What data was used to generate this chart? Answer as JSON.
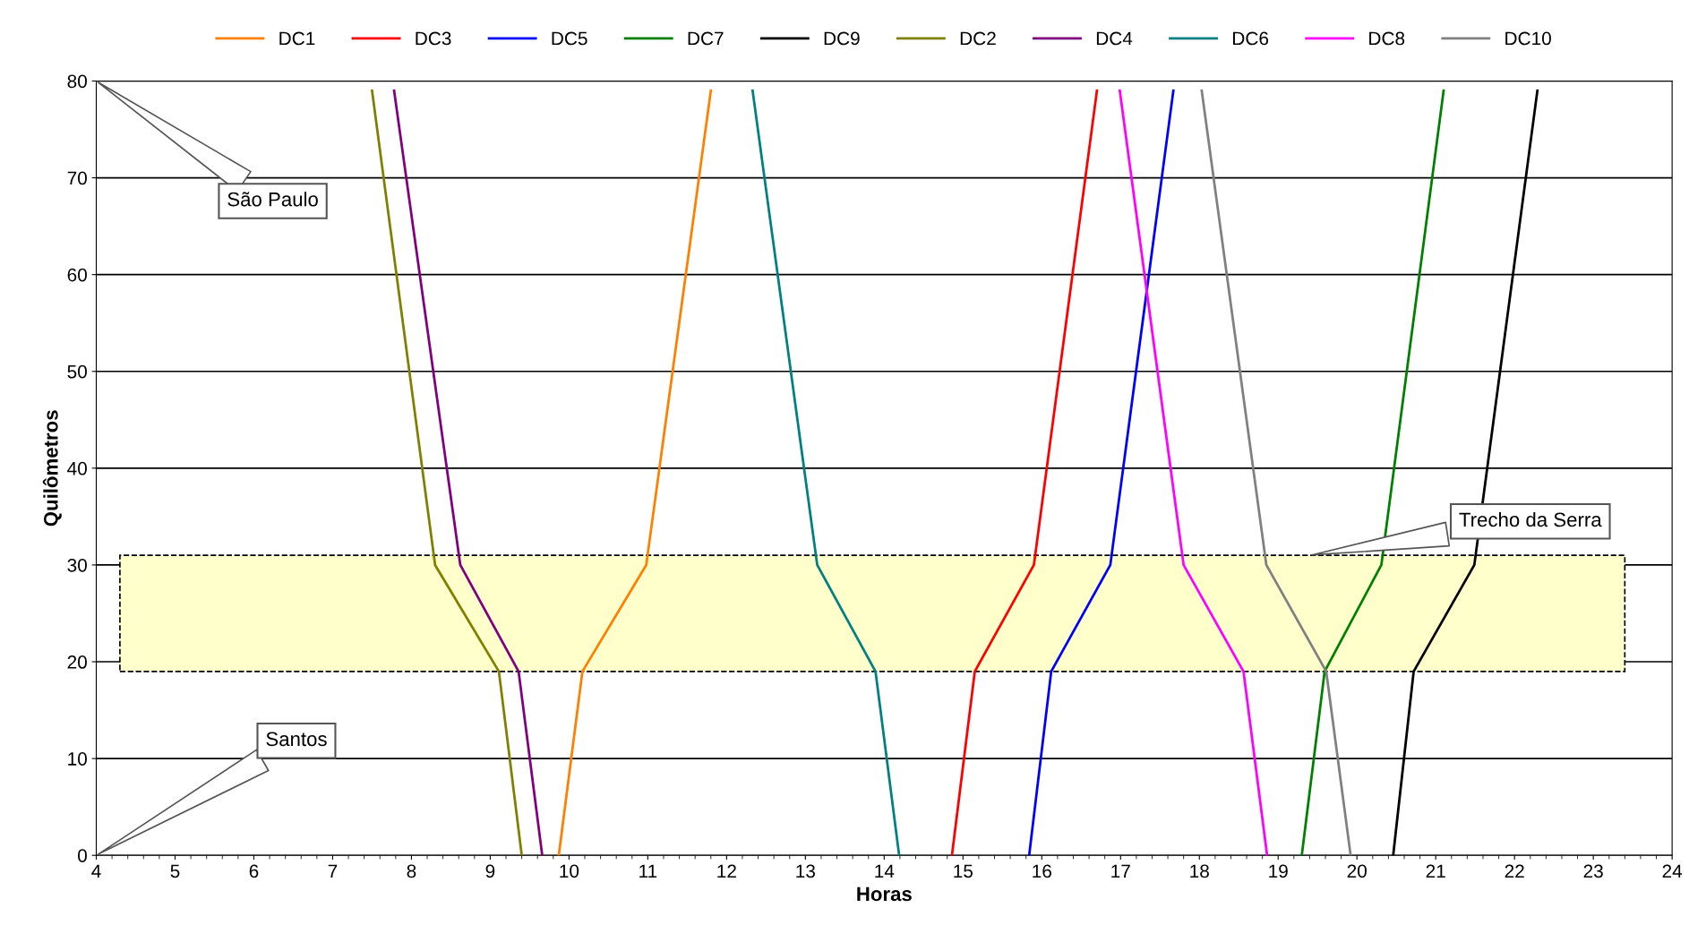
{
  "chart_data": {
    "type": "line",
    "xlabel": "Horas",
    "ylabel": "Quilômetros",
    "xlim": [
      4,
      24
    ],
    "xticks": [
      4,
      5,
      6,
      7,
      8,
      9,
      10,
      11,
      12,
      13,
      14,
      15,
      16,
      17,
      18,
      19,
      20,
      21,
      22,
      23,
      24
    ],
    "ylim": [
      0,
      80
    ],
    "yticks": [
      0,
      10,
      20,
      30,
      40,
      50,
      60,
      70,
      80
    ],
    "grid": "y",
    "legend": "top",
    "marker": "none",
    "line_style": "solid",
    "series": [
      {
        "name": "DC1",
        "color": "#ff8000",
        "x": [
          9.87,
          10.17,
          10.98,
          11.8
        ],
        "values": [
          0,
          19,
          30,
          79
        ]
      },
      {
        "name": "DC3",
        "color": "#ff0000",
        "x": [
          14.86,
          15.15,
          15.9,
          16.7
        ],
        "values": [
          0,
          19,
          30,
          79
        ]
      },
      {
        "name": "DC5",
        "color": "#0000ff",
        "x": [
          15.84,
          16.12,
          16.87,
          17.67
        ],
        "values": [
          0,
          19,
          30,
          79
        ]
      },
      {
        "name": "DC7",
        "color": "#008000",
        "x": [
          19.3,
          19.59,
          20.31,
          21.1
        ],
        "values": [
          0,
          19,
          30,
          79
        ]
      },
      {
        "name": "DC9",
        "color": "#000000",
        "x": [
          20.46,
          20.72,
          21.49,
          22.29
        ],
        "values": [
          0,
          19,
          30,
          79
        ]
      },
      {
        "name": "DC2",
        "color": "#808000",
        "x": [
          7.5,
          8.3,
          9.11,
          9.4
        ],
        "values": [
          79,
          30,
          19,
          0
        ]
      },
      {
        "name": "DC4",
        "color": "#800080",
        "x": [
          7.78,
          8.62,
          9.36,
          9.66
        ],
        "values": [
          79,
          30,
          19,
          0
        ]
      },
      {
        "name": "DC6",
        "color": "#008080",
        "x": [
          12.33,
          13.15,
          13.89,
          14.19
        ],
        "values": [
          79,
          30,
          19,
          0
        ]
      },
      {
        "name": "DC8",
        "color": "#ff00ff",
        "x": [
          16.99,
          17.8,
          18.56,
          18.86
        ],
        "values": [
          79,
          30,
          19,
          0
        ]
      },
      {
        "name": "DC10",
        "color": "#808080",
        "x": [
          18.03,
          18.85,
          19.61,
          19.92
        ],
        "values": [
          79,
          30,
          19,
          0
        ]
      }
    ],
    "bands": [
      {
        "axis": "y",
        "from": 19,
        "to": 31,
        "label": "Trecho da Serra",
        "color": "#ffffcc"
      }
    ],
    "annotations": [
      "São Paulo",
      "Santos"
    ]
  }
}
